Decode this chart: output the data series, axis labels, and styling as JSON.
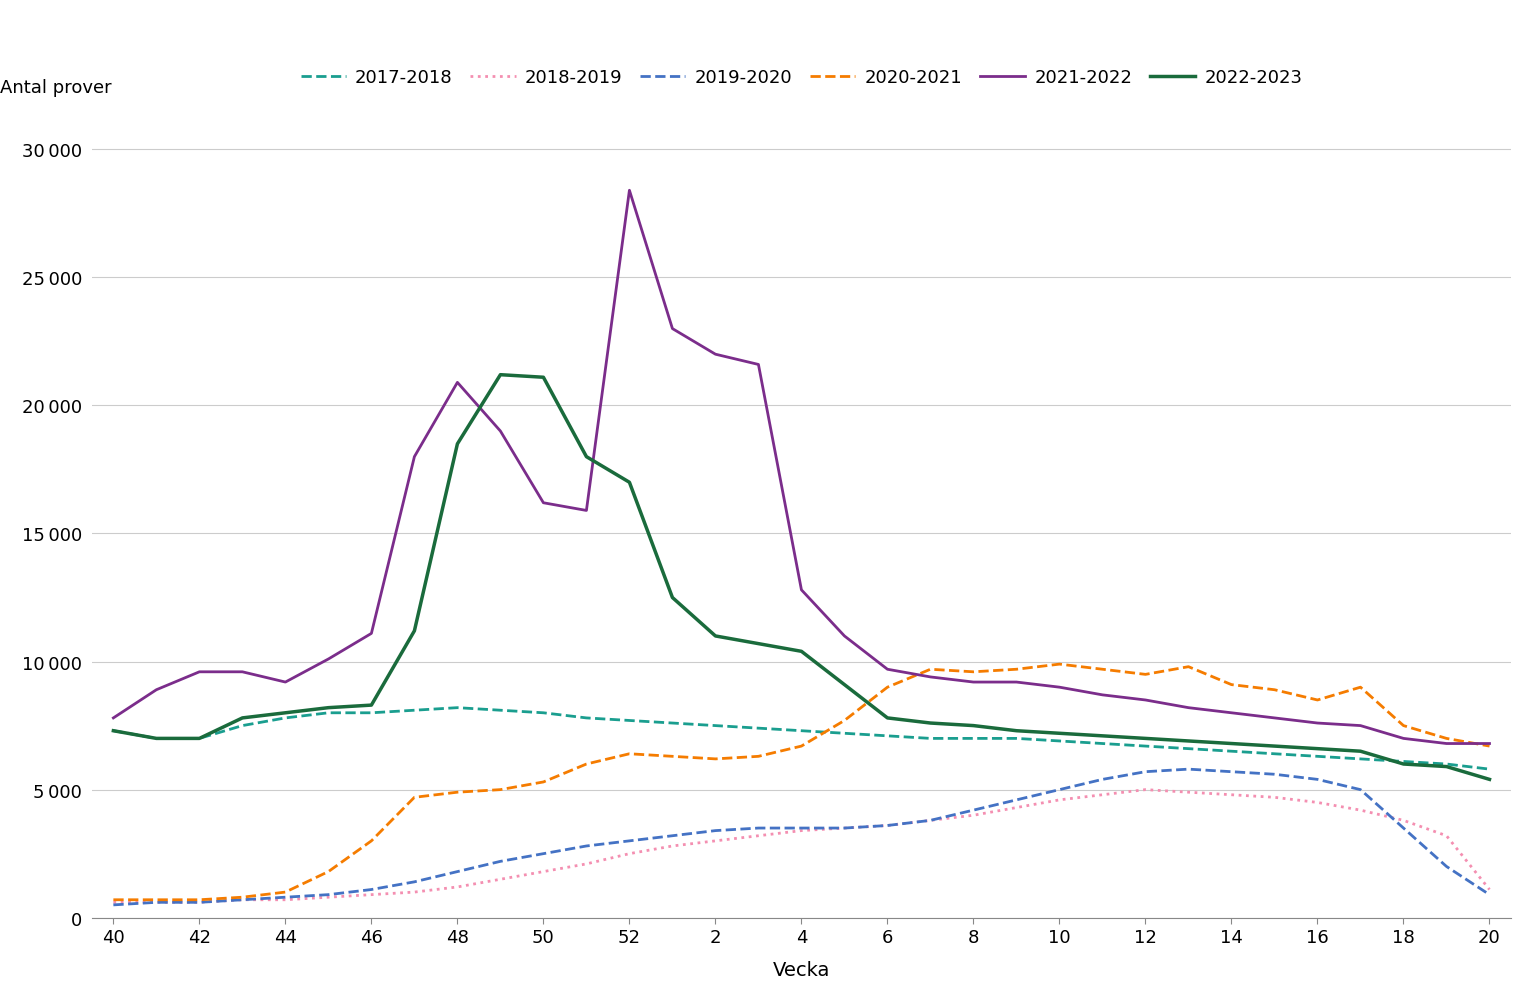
{
  "title": "",
  "ylabel": "Antal prover",
  "xlabel": "Vecka",
  "x_ticks_labels": [
    40,
    42,
    44,
    46,
    48,
    50,
    52,
    2,
    4,
    6,
    8,
    10,
    12,
    14,
    16,
    18,
    20
  ],
  "ylim": [
    0,
    31000
  ],
  "yticks": [
    0,
    5000,
    10000,
    15000,
    20000,
    25000,
    30000
  ],
  "series": [
    {
      "label": "2017-2018",
      "color": "#1a9e8f",
      "linestyle": "dashed",
      "linewidth": 2.0,
      "data": [
        7300,
        7000,
        7000,
        7500,
        7800,
        8000,
        8000,
        8100,
        8200,
        8100,
        8000,
        7800,
        7700,
        7600,
        7500,
        7400,
        7300,
        7200,
        7100,
        7000,
        7000,
        7000,
        6900,
        6800,
        6700,
        6600,
        6500,
        6400,
        6300,
        6200,
        6100,
        6000,
        5800
      ]
    },
    {
      "label": "2018-2019",
      "color": "#f48fb1",
      "linestyle": "dotted",
      "linewidth": 2.0,
      "data": [
        600,
        600,
        600,
        700,
        700,
        800,
        900,
        1000,
        1200,
        1500,
        1800,
        2100,
        2500,
        2800,
        3000,
        3200,
        3400,
        3500,
        3600,
        3800,
        4000,
        4300,
        4600,
        4800,
        5000,
        4900,
        4800,
        4700,
        4500,
        4200,
        3800,
        3200,
        1100
      ]
    },
    {
      "label": "2019-2020",
      "color": "#4472c4",
      "linestyle": "dashed",
      "linewidth": 2.0,
      "data": [
        500,
        600,
        600,
        700,
        800,
        900,
        1100,
        1400,
        1800,
        2200,
        2500,
        2800,
        3000,
        3200,
        3400,
        3500,
        3500,
        3500,
        3600,
        3800,
        4200,
        4600,
        5000,
        5400,
        5700,
        5800,
        5700,
        5600,
        5400,
        5000,
        3500,
        2000,
        900
      ]
    },
    {
      "label": "2020-2021",
      "color": "#f57c00",
      "linestyle": "dashed",
      "linewidth": 2.0,
      "data": [
        700,
        700,
        700,
        800,
        1000,
        1800,
        3000,
        4700,
        4900,
        5000,
        5300,
        6000,
        6400,
        6300,
        6200,
        6300,
        6700,
        7700,
        9000,
        9700,
        9600,
        9700,
        9900,
        9700,
        9500,
        9800,
        9100,
        8900,
        8500,
        9000,
        7500,
        7000,
        6700
      ]
    },
    {
      "label": "2021-2022",
      "color": "#7b2d8b",
      "linestyle": "solid",
      "linewidth": 2.0,
      "data": [
        7800,
        8900,
        9600,
        9600,
        9200,
        10100,
        11100,
        18000,
        20900,
        19000,
        16200,
        15900,
        28400,
        23000,
        22000,
        21600,
        12800,
        11000,
        9700,
        9400,
        9200,
        9200,
        9000,
        8700,
        8500,
        8200,
        8000,
        7800,
        7600,
        7500,
        7000,
        6800,
        6800
      ]
    },
    {
      "label": "2022-2023",
      "color": "#1a6b3c",
      "linestyle": "solid",
      "linewidth": 2.5,
      "data": [
        7300,
        7000,
        7000,
        7800,
        8000,
        8200,
        8300,
        11200,
        18500,
        21200,
        21100,
        18000,
        17000,
        12500,
        11000,
        10700,
        10400,
        9100,
        7800,
        7600,
        7500,
        7300,
        7200,
        7100,
        7000,
        6900,
        6800,
        6700,
        6600,
        6500,
        6000,
        5900,
        5400
      ]
    }
  ],
  "background_color": "#ffffff",
  "legend_ncol": 6
}
